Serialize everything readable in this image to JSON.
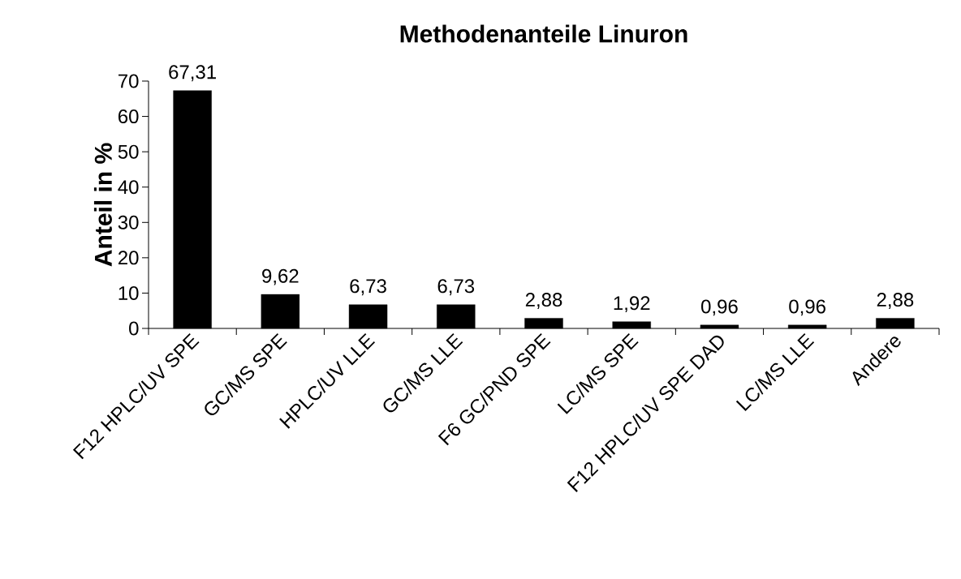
{
  "chart_data": {
    "type": "bar",
    "title": "Methodenanteile Linuron",
    "ylabel": "Anteil in %",
    "categories": [
      "F12 HPLC/UV SPE",
      "GC/MS SPE",
      "HPLC/UV LLE",
      "GC/MS LLE",
      "F6 GC/PND SPE",
      "LC/MS SPE",
      "F12 HPLC/UV SPE DAD",
      "LC/MS LLE",
      "Andere"
    ],
    "values": [
      67.31,
      9.62,
      6.73,
      6.73,
      2.88,
      1.92,
      0.96,
      0.96,
      2.88
    ],
    "value_labels": [
      "67,31",
      "9,62",
      "6,73",
      "6,73",
      "2,88",
      "1,92",
      "0,96",
      "0,96",
      "2,88"
    ],
    "color": "#000000",
    "ylim": [
      0,
      70
    ],
    "yticks": [
      0,
      10,
      20,
      30,
      40,
      50,
      60,
      70
    ]
  }
}
